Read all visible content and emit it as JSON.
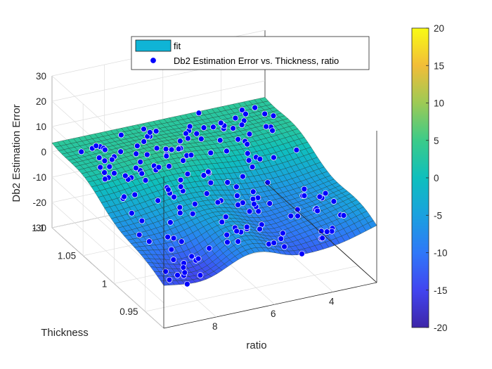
{
  "chart_data": {
    "type": "surface",
    "title": "",
    "xlabel": "ratio",
    "ylabel": "Thickness",
    "zlabel": "Db2 Estimation Error",
    "x_ticks": [
      "8",
      "6",
      "4"
    ],
    "y_ticks": [
      "0.95",
      "1",
      "1.05",
      "1.1"
    ],
    "z_ticks": [
      "-30",
      "-20",
      "-10",
      "0",
      "10",
      "20",
      "30"
    ],
    "xlim": [
      2.5,
      9.8
    ],
    "ylim": [
      0.92,
      1.1
    ],
    "zlim": [
      -30,
      30
    ],
    "legend": {
      "placement": "top-center",
      "entries": [
        "fit",
        "Db2 Estimation Error vs. Thickness, ratio"
      ]
    },
    "colorbar": {
      "colormap": "parula",
      "limits": [
        -20,
        20
      ],
      "ticks": [
        "20",
        "15",
        "10",
        "5",
        "0",
        "-5",
        "-10",
        "-15",
        "-20"
      ]
    },
    "grid": true,
    "surface_color": "#2dbf9c",
    "marker_color": "#0000ff"
  }
}
